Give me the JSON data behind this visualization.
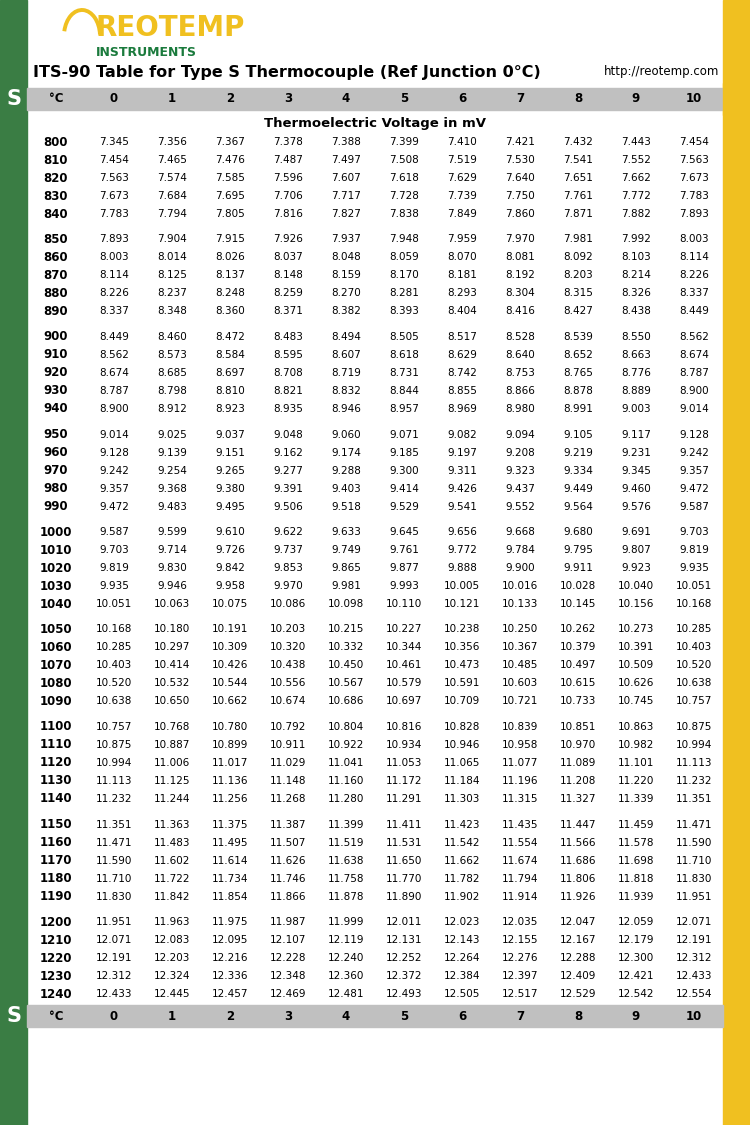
{
  "title": "ITS-90 Table for Type S Thermocouple (Ref Junction 0°C)",
  "url": "http://reotemp.com",
  "subtitle": "Thermoelectric Voltage in mV",
  "col_headers": [
    "°C",
    "0",
    "1",
    "2",
    "3",
    "4",
    "5",
    "6",
    "7",
    "8",
    "9",
    "10"
  ],
  "header_bg": "#c0c0c0",
  "green_bar_color": "#3a7d44",
  "yellow_bar_color": "#f0c020",
  "logo_color_main": "#f0c020",
  "logo_color_sub": "#1a7a3c",
  "rows": [
    [
      800,
      7.345,
      7.356,
      7.367,
      7.378,
      7.388,
      7.399,
      7.41,
      7.421,
      7.432,
      7.443,
      7.454
    ],
    [
      810,
      7.454,
      7.465,
      7.476,
      7.487,
      7.497,
      7.508,
      7.519,
      7.53,
      7.541,
      7.552,
      7.563
    ],
    [
      820,
      7.563,
      7.574,
      7.585,
      7.596,
      7.607,
      7.618,
      7.629,
      7.64,
      7.651,
      7.662,
      7.673
    ],
    [
      830,
      7.673,
      7.684,
      7.695,
      7.706,
      7.717,
      7.728,
      7.739,
      7.75,
      7.761,
      7.772,
      7.783
    ],
    [
      840,
      7.783,
      7.794,
      7.805,
      7.816,
      7.827,
      7.838,
      7.849,
      7.86,
      7.871,
      7.882,
      7.893
    ],
    [
      850,
      7.893,
      7.904,
      7.915,
      7.926,
      7.937,
      7.948,
      7.959,
      7.97,
      7.981,
      7.992,
      8.003
    ],
    [
      860,
      8.003,
      8.014,
      8.026,
      8.037,
      8.048,
      8.059,
      8.07,
      8.081,
      8.092,
      8.103,
      8.114
    ],
    [
      870,
      8.114,
      8.125,
      8.137,
      8.148,
      8.159,
      8.17,
      8.181,
      8.192,
      8.203,
      8.214,
      8.226
    ],
    [
      880,
      8.226,
      8.237,
      8.248,
      8.259,
      8.27,
      8.281,
      8.293,
      8.304,
      8.315,
      8.326,
      8.337
    ],
    [
      890,
      8.337,
      8.348,
      8.36,
      8.371,
      8.382,
      8.393,
      8.404,
      8.416,
      8.427,
      8.438,
      8.449
    ],
    [
      900,
      8.449,
      8.46,
      8.472,
      8.483,
      8.494,
      8.505,
      8.517,
      8.528,
      8.539,
      8.55,
      8.562
    ],
    [
      910,
      8.562,
      8.573,
      8.584,
      8.595,
      8.607,
      8.618,
      8.629,
      8.64,
      8.652,
      8.663,
      8.674
    ],
    [
      920,
      8.674,
      8.685,
      8.697,
      8.708,
      8.719,
      8.731,
      8.742,
      8.753,
      8.765,
      8.776,
      8.787
    ],
    [
      930,
      8.787,
      8.798,
      8.81,
      8.821,
      8.832,
      8.844,
      8.855,
      8.866,
      8.878,
      8.889,
      8.9
    ],
    [
      940,
      8.9,
      8.912,
      8.923,
      8.935,
      8.946,
      8.957,
      8.969,
      8.98,
      8.991,
      9.003,
      9.014
    ],
    [
      950,
      9.014,
      9.025,
      9.037,
      9.048,
      9.06,
      9.071,
      9.082,
      9.094,
      9.105,
      9.117,
      9.128
    ],
    [
      960,
      9.128,
      9.139,
      9.151,
      9.162,
      9.174,
      9.185,
      9.197,
      9.208,
      9.219,
      9.231,
      9.242
    ],
    [
      970,
      9.242,
      9.254,
      9.265,
      9.277,
      9.288,
      9.3,
      9.311,
      9.323,
      9.334,
      9.345,
      9.357
    ],
    [
      980,
      9.357,
      9.368,
      9.38,
      9.391,
      9.403,
      9.414,
      9.426,
      9.437,
      9.449,
      9.46,
      9.472
    ],
    [
      990,
      9.472,
      9.483,
      9.495,
      9.506,
      9.518,
      9.529,
      9.541,
      9.552,
      9.564,
      9.576,
      9.587
    ],
    [
      1000,
      9.587,
      9.599,
      9.61,
      9.622,
      9.633,
      9.645,
      9.656,
      9.668,
      9.68,
      9.691,
      9.703
    ],
    [
      1010,
      9.703,
      9.714,
      9.726,
      9.737,
      9.749,
      9.761,
      9.772,
      9.784,
      9.795,
      9.807,
      9.819
    ],
    [
      1020,
      9.819,
      9.83,
      9.842,
      9.853,
      9.865,
      9.877,
      9.888,
      9.9,
      9.911,
      9.923,
      9.935
    ],
    [
      1030,
      9.935,
      9.946,
      9.958,
      9.97,
      9.981,
      9.993,
      10.005,
      10.016,
      10.028,
      10.04,
      10.051
    ],
    [
      1040,
      10.051,
      10.063,
      10.075,
      10.086,
      10.098,
      10.11,
      10.121,
      10.133,
      10.145,
      10.156,
      10.168
    ],
    [
      1050,
      10.168,
      10.18,
      10.191,
      10.203,
      10.215,
      10.227,
      10.238,
      10.25,
      10.262,
      10.273,
      10.285
    ],
    [
      1060,
      10.285,
      10.297,
      10.309,
      10.32,
      10.332,
      10.344,
      10.356,
      10.367,
      10.379,
      10.391,
      10.403
    ],
    [
      1070,
      10.403,
      10.414,
      10.426,
      10.438,
      10.45,
      10.461,
      10.473,
      10.485,
      10.497,
      10.509,
      10.52
    ],
    [
      1080,
      10.52,
      10.532,
      10.544,
      10.556,
      10.567,
      10.579,
      10.591,
      10.603,
      10.615,
      10.626,
      10.638
    ],
    [
      1090,
      10.638,
      10.65,
      10.662,
      10.674,
      10.686,
      10.697,
      10.709,
      10.721,
      10.733,
      10.745,
      10.757
    ],
    [
      1100,
      10.757,
      10.768,
      10.78,
      10.792,
      10.804,
      10.816,
      10.828,
      10.839,
      10.851,
      10.863,
      10.875
    ],
    [
      1110,
      10.875,
      10.887,
      10.899,
      10.911,
      10.922,
      10.934,
      10.946,
      10.958,
      10.97,
      10.982,
      10.994
    ],
    [
      1120,
      10.994,
      11.006,
      11.017,
      11.029,
      11.041,
      11.053,
      11.065,
      11.077,
      11.089,
      11.101,
      11.113
    ],
    [
      1130,
      11.113,
      11.125,
      11.136,
      11.148,
      11.16,
      11.172,
      11.184,
      11.196,
      11.208,
      11.22,
      11.232
    ],
    [
      1140,
      11.232,
      11.244,
      11.256,
      11.268,
      11.28,
      11.291,
      11.303,
      11.315,
      11.327,
      11.339,
      11.351
    ],
    [
      1150,
      11.351,
      11.363,
      11.375,
      11.387,
      11.399,
      11.411,
      11.423,
      11.435,
      11.447,
      11.459,
      11.471
    ],
    [
      1160,
      11.471,
      11.483,
      11.495,
      11.507,
      11.519,
      11.531,
      11.542,
      11.554,
      11.566,
      11.578,
      11.59
    ],
    [
      1170,
      11.59,
      11.602,
      11.614,
      11.626,
      11.638,
      11.65,
      11.662,
      11.674,
      11.686,
      11.698,
      11.71
    ],
    [
      1180,
      11.71,
      11.722,
      11.734,
      11.746,
      11.758,
      11.77,
      11.782,
      11.794,
      11.806,
      11.818,
      11.83
    ],
    [
      1190,
      11.83,
      11.842,
      11.854,
      11.866,
      11.878,
      11.89,
      11.902,
      11.914,
      11.926,
      11.939,
      11.951
    ],
    [
      1200,
      11.951,
      11.963,
      11.975,
      11.987,
      11.999,
      12.011,
      12.023,
      12.035,
      12.047,
      12.059,
      12.071
    ],
    [
      1210,
      12.071,
      12.083,
      12.095,
      12.107,
      12.119,
      12.131,
      12.143,
      12.155,
      12.167,
      12.179,
      12.191
    ],
    [
      1220,
      12.191,
      12.203,
      12.216,
      12.228,
      12.24,
      12.252,
      12.264,
      12.276,
      12.288,
      12.3,
      12.312
    ],
    [
      1230,
      12.312,
      12.324,
      12.336,
      12.348,
      12.36,
      12.372,
      12.384,
      12.397,
      12.409,
      12.421,
      12.433
    ],
    [
      1240,
      12.433,
      12.445,
      12.457,
      12.469,
      12.481,
      12.493,
      12.505,
      12.517,
      12.529,
      12.542,
      12.554
    ]
  ],
  "group_breaks_after": [
    840,
    890,
    940,
    990,
    1040,
    1090,
    1140,
    1190
  ],
  "figsize": [
    7.5,
    11.25
  ],
  "dpi": 100
}
